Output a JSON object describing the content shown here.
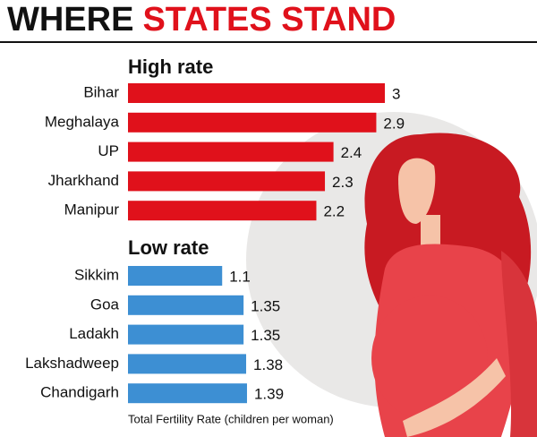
{
  "title": {
    "lead": "WHERE",
    "highlight": "STATES STAND"
  },
  "chart_data": [
    {
      "type": "bar",
      "title": "High rate",
      "categories": [
        "Bihar",
        "Meghalaya",
        "UP",
        "Jharkhand",
        "Manipur"
      ],
      "values": [
        3,
        2.9,
        2.4,
        2.3,
        2.2
      ],
      "color": "#e0111b"
    },
    {
      "type": "bar",
      "title": "Low rate",
      "categories": [
        "Sikkim",
        "Goa",
        "Ladakh",
        "Lakshadweep",
        "Chandigarh"
      ],
      "values": [
        1.1,
        1.35,
        1.35,
        1.38,
        1.39
      ],
      "color": "#3d8fd3",
      "xlabel": "Total Fertility Rate (children per woman)"
    }
  ]
}
